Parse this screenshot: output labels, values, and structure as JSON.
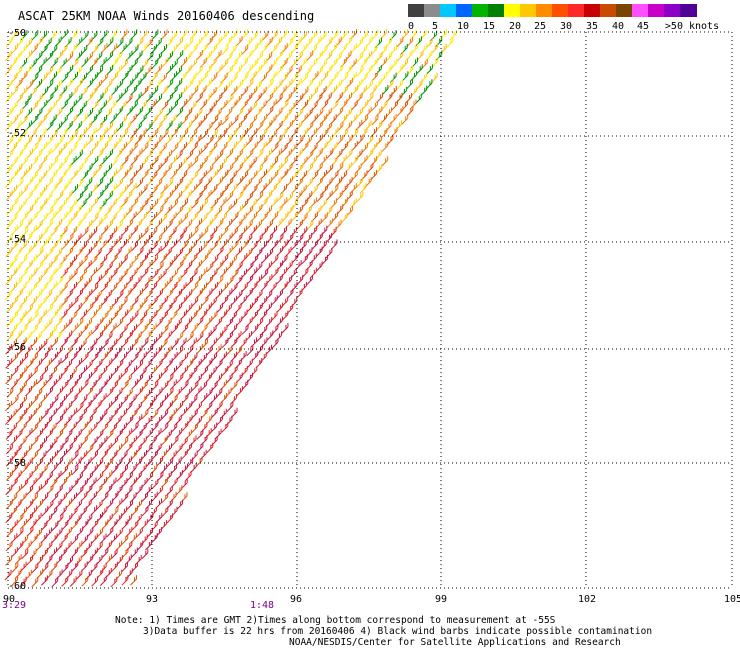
{
  "title": "ASCAT 25KM NOAA Winds 20160406 descending",
  "legend": {
    "colors": [
      "#404040",
      "#8c8c8c",
      "#00c8ff",
      "#0064ff",
      "#00b400",
      "#008000",
      "#ffff00",
      "#ffc800",
      "#ff8c00",
      "#ff5000",
      "#ff2828",
      "#c80000",
      "#c84b00",
      "#784600",
      "#ff50ff",
      "#c800c8",
      "#8c00c8",
      "#500096"
    ],
    "ticks": [
      "0",
      "5",
      "10",
      "15",
      "20",
      "25",
      "30",
      "35",
      "40",
      "45",
      ">50 knots"
    ]
  },
  "axes": {
    "lat_labels": [
      "-50",
      "-52",
      "-54",
      "-56",
      "-58",
      "-60"
    ],
    "lon_labels": [
      "90",
      "93",
      "96",
      "99",
      "102",
      "105"
    ]
  },
  "times": {
    "left": "3:29",
    "mid": "1:48"
  },
  "notes": [
    "Note: 1) Times are GMT 2)Times along bottom correspond to measurement at -55S",
    "3)Data buffer is 22 hrs from 20160406 4) Black wind barbs indicate possible contamination",
    "NOAA/NESDIS/Center for Satellite Applications and Research"
  ]
}
